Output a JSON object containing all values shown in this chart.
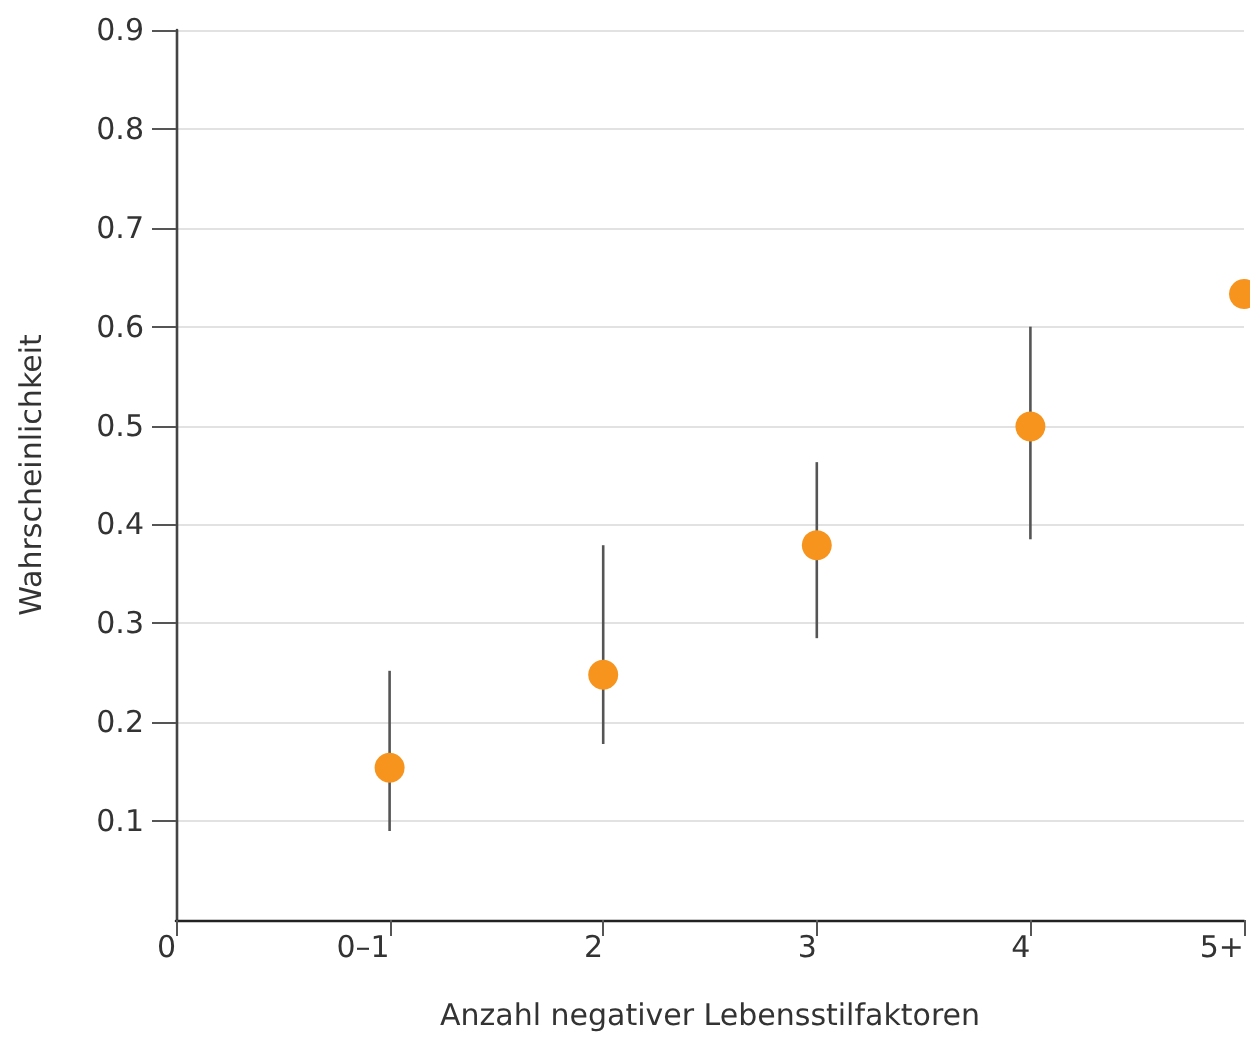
{
  "chart_data": {
    "type": "scatter",
    "xlabel": "Anzahl negativer Lebensstilfaktoren",
    "ylabel": "Wahrscheinlichkeit",
    "categories": [
      "0",
      "0–1",
      "2",
      "3",
      "4",
      "5+"
    ],
    "values": [
      null,
      0.154,
      0.248,
      0.379,
      0.499,
      0.633
    ],
    "errors": [
      null,
      [
        0.09,
        0.252
      ],
      [
        0.178,
        0.379
      ],
      [
        0.285,
        0.463
      ],
      [
        0.385,
        0.6
      ],
      null
    ],
    "color": "#f7941d",
    "marker": "circle",
    "ylim": [
      0,
      0.9
    ],
    "yticks": [
      0.1,
      0.2,
      0.3,
      0.4,
      0.5,
      0.6,
      0.7,
      0.8,
      0.9
    ],
    "grid": "y"
  }
}
